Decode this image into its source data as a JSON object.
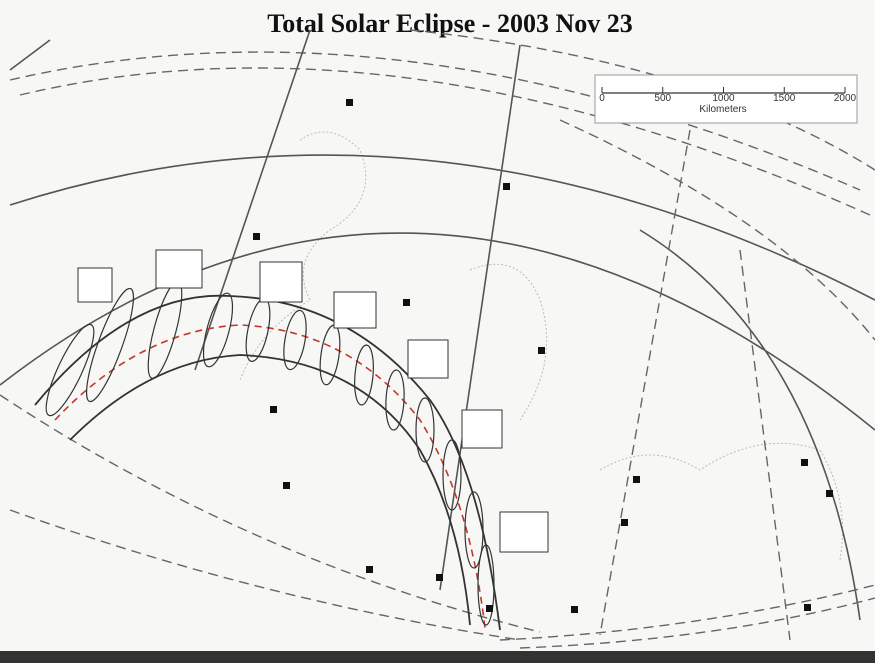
{
  "title": "Total Solar Eclipse - 2003 Nov 23",
  "scale_bar": {
    "labels": [
      "0",
      "500",
      "1000",
      "1500",
      "2000"
    ],
    "unit": "Kilometers"
  }
}
